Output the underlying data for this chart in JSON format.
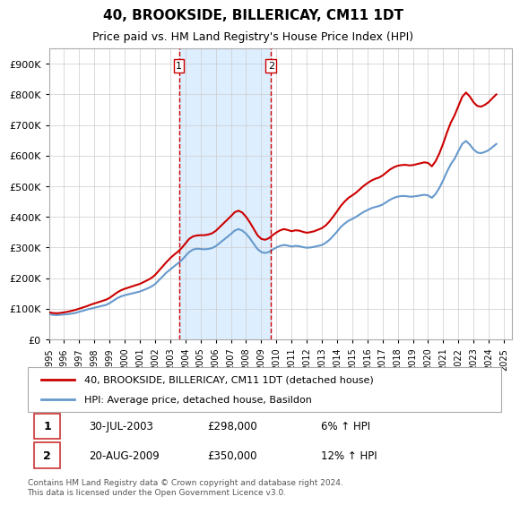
{
  "title": "40, BROOKSIDE, BILLERICAY, CM11 1DT",
  "subtitle": "Price paid vs. HM Land Registry's House Price Index (HPI)",
  "ylabel_ticks": [
    "£0",
    "£100K",
    "£200K",
    "£300K",
    "£400K",
    "£500K",
    "£600K",
    "£700K",
    "£800K",
    "£900K"
  ],
  "ytick_values": [
    0,
    100000,
    200000,
    300000,
    400000,
    500000,
    600000,
    700000,
    800000,
    900000
  ],
  "ylim": [
    0,
    950000
  ],
  "xlim_start": 1995.0,
  "xlim_end": 2025.5,
  "red_line_color": "#cc0000",
  "blue_line_color": "#6699cc",
  "shade_color": "#ddeeff",
  "vline_color": "#cc0000",
  "transaction1_year": 2003.58,
  "transaction2_year": 2009.64,
  "legend_label1": "40, BROOKSIDE, BILLERICAY, CM11 1DT (detached house)",
  "legend_label2": "HPI: Average price, detached house, Basildon",
  "table_rows": [
    {
      "num": "1",
      "date": "30-JUL-2003",
      "price": "£298,000",
      "hpi": "6% ↑ HPI"
    },
    {
      "num": "2",
      "date": "20-AUG-2009",
      "price": "£350,000",
      "hpi": "12% ↑ HPI"
    }
  ],
  "footnote": "Contains HM Land Registry data © Crown copyright and database right 2024.\nThis data is licensed under the Open Government Licence v3.0.",
  "background_color": "#ffffff",
  "plot_bg_color": "#ffffff",
  "grid_color": "#cccccc",
  "hpi_data": {
    "years": [
      1995.0,
      1995.25,
      1995.5,
      1995.75,
      1996.0,
      1996.25,
      1996.5,
      1996.75,
      1997.0,
      1997.25,
      1997.5,
      1997.75,
      1998.0,
      1998.25,
      1998.5,
      1998.75,
      1999.0,
      1999.25,
      1999.5,
      1999.75,
      2000.0,
      2000.25,
      2000.5,
      2000.75,
      2001.0,
      2001.25,
      2001.5,
      2001.75,
      2002.0,
      2002.25,
      2002.5,
      2002.75,
      2003.0,
      2003.25,
      2003.5,
      2003.75,
      2004.0,
      2004.25,
      2004.5,
      2004.75,
      2005.0,
      2005.25,
      2005.5,
      2005.75,
      2006.0,
      2006.25,
      2006.5,
      2006.75,
      2007.0,
      2007.25,
      2007.5,
      2007.75,
      2008.0,
      2008.25,
      2008.5,
      2008.75,
      2009.0,
      2009.25,
      2009.5,
      2009.75,
      2010.0,
      2010.25,
      2010.5,
      2010.75,
      2011.0,
      2011.25,
      2011.5,
      2011.75,
      2012.0,
      2012.25,
      2012.5,
      2012.75,
      2013.0,
      2013.25,
      2013.5,
      2013.75,
      2014.0,
      2014.25,
      2014.5,
      2014.75,
      2015.0,
      2015.25,
      2015.5,
      2015.75,
      2016.0,
      2016.25,
      2016.5,
      2016.75,
      2017.0,
      2017.25,
      2017.5,
      2017.75,
      2018.0,
      2018.25,
      2018.5,
      2018.75,
      2019.0,
      2019.25,
      2019.5,
      2019.75,
      2020.0,
      2020.25,
      2020.5,
      2020.75,
      2021.0,
      2021.25,
      2021.5,
      2021.75,
      2022.0,
      2022.25,
      2022.5,
      2022.75,
      2023.0,
      2023.25,
      2023.5,
      2023.75,
      2024.0,
      2024.25,
      2024.5
    ],
    "values": [
      82000,
      80000,
      79000,
      80000,
      81000,
      82000,
      84000,
      86000,
      90000,
      93000,
      97000,
      100000,
      103000,
      106000,
      109000,
      112000,
      118000,
      126000,
      134000,
      140000,
      144000,
      147000,
      150000,
      153000,
      156000,
      161000,
      166000,
      172000,
      180000,
      193000,
      205000,
      218000,
      228000,
      238000,
      248000,
      258000,
      272000,
      285000,
      293000,
      296000,
      295000,
      294000,
      295000,
      298000,
      304000,
      314000,
      324000,
      334000,
      344000,
      355000,
      360000,
      355000,
      345000,
      330000,
      312000,
      295000,
      285000,
      282000,
      285000,
      293000,
      300000,
      305000,
      308000,
      306000,
      303000,
      305000,
      304000,
      301000,
      299000,
      300000,
      302000,
      305000,
      308000,
      315000,
      325000,
      338000,
      352000,
      367000,
      378000,
      387000,
      393000,
      400000,
      408000,
      416000,
      422000,
      428000,
      432000,
      435000,
      440000,
      448000,
      456000,
      462000,
      466000,
      468000,
      468000,
      466000,
      466000,
      468000,
      470000,
      472000,
      470000,
      462000,
      475000,
      495000,
      520000,
      548000,
      572000,
      590000,
      615000,
      638000,
      648000,
      636000,
      620000,
      610000,
      608000,
      612000,
      618000,
      628000,
      638000
    ]
  },
  "price_paid_data": {
    "years": [
      1995.0,
      1995.25,
      1995.5,
      1995.75,
      1996.0,
      1996.25,
      1996.5,
      1996.75,
      1997.0,
      1997.25,
      1997.5,
      1997.75,
      1998.0,
      1998.25,
      1998.5,
      1998.75,
      1999.0,
      1999.25,
      1999.5,
      1999.75,
      2000.0,
      2000.25,
      2000.5,
      2000.75,
      2001.0,
      2001.25,
      2001.5,
      2001.75,
      2002.0,
      2002.25,
      2002.5,
      2002.75,
      2003.0,
      2003.25,
      2003.5,
      2003.75,
      2004.0,
      2004.25,
      2004.5,
      2004.75,
      2005.0,
      2005.25,
      2005.5,
      2005.75,
      2006.0,
      2006.25,
      2006.5,
      2006.75,
      2007.0,
      2007.25,
      2007.5,
      2007.75,
      2008.0,
      2008.25,
      2008.5,
      2008.75,
      2009.0,
      2009.25,
      2009.5,
      2009.75,
      2010.0,
      2010.25,
      2010.5,
      2010.75,
      2011.0,
      2011.25,
      2011.5,
      2011.75,
      2012.0,
      2012.25,
      2012.5,
      2012.75,
      2013.0,
      2013.25,
      2013.5,
      2013.75,
      2014.0,
      2014.25,
      2014.5,
      2014.75,
      2015.0,
      2015.25,
      2015.5,
      2015.75,
      2016.0,
      2016.25,
      2016.5,
      2016.75,
      2017.0,
      2017.25,
      2017.5,
      2017.75,
      2018.0,
      2018.25,
      2018.5,
      2018.75,
      2019.0,
      2019.25,
      2019.5,
      2019.75,
      2020.0,
      2020.25,
      2020.5,
      2020.75,
      2021.0,
      2021.25,
      2021.5,
      2021.75,
      2022.0,
      2022.25,
      2022.5,
      2022.75,
      2023.0,
      2023.25,
      2023.5,
      2023.75,
      2024.0,
      2024.25,
      2024.5
    ],
    "values": [
      88000,
      86000,
      85000,
      86000,
      88000,
      90000,
      93000,
      96000,
      100000,
      104000,
      108000,
      113000,
      117000,
      121000,
      125000,
      129000,
      135000,
      144000,
      153000,
      160000,
      165000,
      169000,
      173000,
      177000,
      181000,
      187000,
      193000,
      200000,
      210000,
      224000,
      238000,
      252000,
      265000,
      276000,
      286000,
      298000,
      313000,
      328000,
      336000,
      339000,
      340000,
      340000,
      342000,
      346000,
      354000,
      366000,
      378000,
      390000,
      402000,
      415000,
      420000,
      414000,
      400000,
      382000,
      361000,
      340000,
      328000,
      325000,
      330000,
      340000,
      349000,
      356000,
      360000,
      357000,
      353000,
      356000,
      355000,
      351000,
      348000,
      350000,
      353000,
      358000,
      363000,
      372000,
      385000,
      401000,
      418000,
      436000,
      450000,
      462000,
      470000,
      479000,
      490000,
      501000,
      510000,
      518000,
      524000,
      528000,
      535000,
      545000,
      555000,
      562000,
      567000,
      569000,
      570000,
      568000,
      569000,
      572000,
      575000,
      578000,
      576000,
      565000,
      582000,
      608000,
      640000,
      676000,
      708000,
      732000,
      762000,
      792000,
      806000,
      793000,
      774000,
      762000,
      760000,
      766000,
      775000,
      788000,
      800000
    ]
  }
}
